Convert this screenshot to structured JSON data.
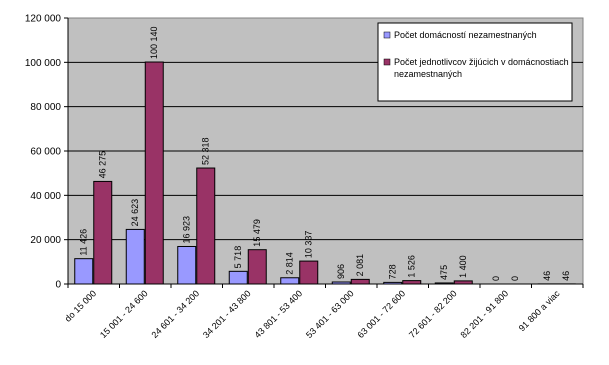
{
  "chart_data": {
    "type": "bar",
    "categories": [
      "do 15 000",
      "15 001 - 24 600",
      "24 601 - 34 200",
      "34 201 - 43 800",
      "43 801 - 53 400",
      "53 401 - 63 000",
      "63 001 - 72 600",
      "72 601 - 82 200",
      "82 201 - 91 800",
      "91 800 a viac"
    ],
    "series": [
      {
        "name": "Počet domácností nezamestnaných",
        "values": [
          11426,
          24623,
          16923,
          5718,
          2814,
          906,
          728,
          475,
          0,
          46
        ],
        "labels": [
          "11 426",
          "24 623",
          "16 923",
          "5 718",
          "2 814",
          "906",
          "728",
          "475",
          "0",
          "46"
        ],
        "color": "#9999FF"
      },
      {
        "name": "Počet jednotlivcov žijúcich v domácnostiach nezamestnaných",
        "values": [
          46275,
          100140,
          52318,
          15479,
          10337,
          2081,
          1526,
          1400,
          0,
          46
        ],
        "labels": [
          "46 275",
          "100 140",
          "52 318",
          "15 479",
          "10 337",
          "2 081",
          "1 526",
          "1 400",
          "0",
          "46"
        ],
        "color": "#993366"
      }
    ],
    "ylim": [
      0,
      120000
    ],
    "yticks": [
      0,
      20000,
      40000,
      60000,
      80000,
      100000,
      120000
    ],
    "ytick_labels": [
      "0",
      "20 000",
      "40 000",
      "60 000",
      "80 000",
      "100 000",
      "120 000"
    ],
    "grid": true,
    "legend_position": "top-right",
    "plot_background": "#C0C0C0"
  }
}
